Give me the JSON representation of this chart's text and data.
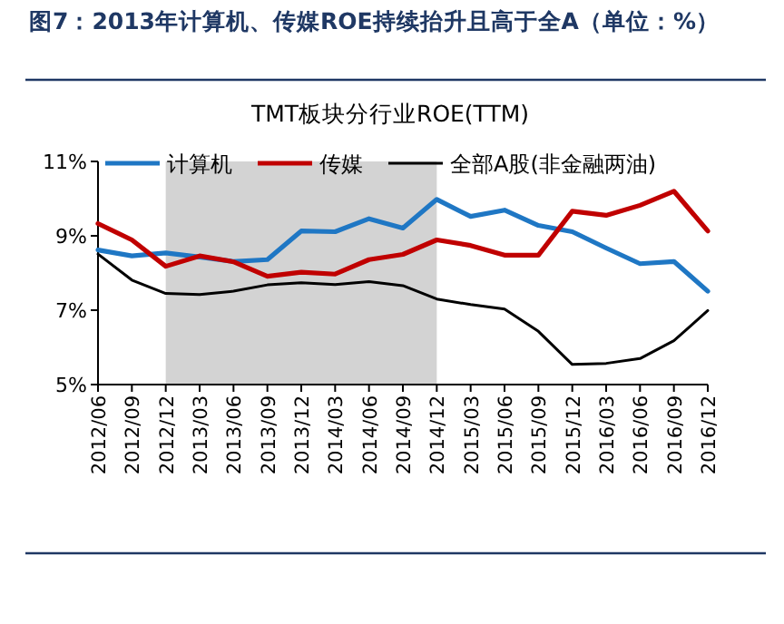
{
  "chart_data": {
    "type": "line",
    "title": "图7：2013年计算机、传媒ROE持续抬升且高于全A（单位：%）",
    "subtitle": "TMT板块分行业ROE(TTM)",
    "categories": [
      "2012/06",
      "2012/09",
      "2012/12",
      "2013/03",
      "2013/06",
      "2013/09",
      "2013/12",
      "2014/03",
      "2014/06",
      "2014/09",
      "2014/12",
      "2015/03",
      "2015/06",
      "2015/09",
      "2015/12",
      "2016/03",
      "2016/06",
      "2016/09",
      "2016/12"
    ],
    "series": [
      {
        "name": "计算机",
        "color": "#1f77c4",
        "values": [
          8.62,
          8.46,
          8.54,
          8.43,
          8.31,
          8.36,
          9.13,
          9.11,
          9.46,
          9.21,
          9.98,
          9.52,
          9.69,
          9.28,
          9.11,
          8.67,
          8.25,
          8.31,
          7.51
        ]
      },
      {
        "name": "传媒",
        "color": "#c00000",
        "values": [
          9.33,
          8.89,
          8.18,
          8.46,
          8.3,
          7.91,
          8.02,
          7.97,
          8.36,
          8.5,
          8.89,
          8.74,
          8.48,
          8.48,
          9.66,
          9.55,
          9.82,
          10.2,
          9.13
        ]
      },
      {
        "name": "全部A股(非金融两油)",
        "color": "#000000",
        "values": [
          8.51,
          7.81,
          7.45,
          7.42,
          7.51,
          7.68,
          7.74,
          7.69,
          7.77,
          7.66,
          7.3,
          7.15,
          7.03,
          6.43,
          5.54,
          5.57,
          5.7,
          6.18,
          6.99
        ]
      }
    ],
    "ylim": [
      5,
      11
    ],
    "yticks": [
      {
        "value": 5,
        "label": "5%"
      },
      {
        "value": 7,
        "label": "7%"
      },
      {
        "value": 9,
        "label": "9%"
      },
      {
        "value": 11,
        "label": "11%"
      }
    ],
    "bands": [
      {
        "axis": "x",
        "from": "2012/12",
        "to": "2014/12",
        "color": "#d3d3d3"
      }
    ],
    "legend": "top",
    "grid": false,
    "marker": "none",
    "line_style": "solid"
  }
}
